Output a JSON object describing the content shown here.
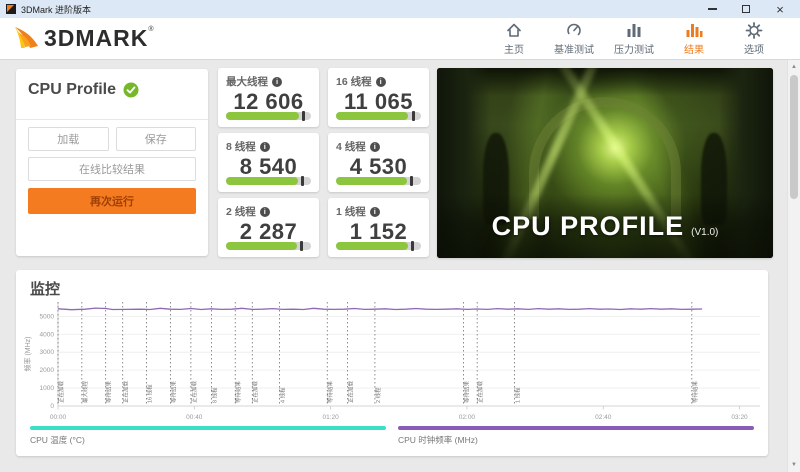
{
  "window": {
    "title": "3DMark 进阶版本",
    "controls": [
      {
        "id": "minimize",
        "icon": "minimize-icon"
      },
      {
        "id": "maximize",
        "icon": "maximize-icon"
      },
      {
        "id": "close",
        "icon": "close-icon"
      }
    ]
  },
  "nav": {
    "logo_text": "3DMARK",
    "registered_mark": "®",
    "accent_color": "#ee7c1e",
    "items": [
      {
        "id": "home",
        "label": "主页",
        "icon": "home-icon",
        "active": false
      },
      {
        "id": "benchmarks",
        "label": "基准测试",
        "icon": "gauge-icon",
        "active": false
      },
      {
        "id": "stress-tests",
        "label": "压力测试",
        "icon": "stress-bars-icon",
        "active": false
      },
      {
        "id": "results",
        "label": "结果",
        "icon": "results-bars-icon",
        "active": true
      },
      {
        "id": "options",
        "label": "选项",
        "icon": "gear-icon",
        "active": false
      }
    ]
  },
  "result_panel": {
    "title": "CPU Profile",
    "status_icon": "check-circle-icon",
    "status_color": "#76b82a",
    "load_label": "加载",
    "save_label": "保存",
    "compare_label": "在线比较结果",
    "run_again_label": "再次运行",
    "run_again_color": "#f47b20"
  },
  "scores": [
    {
      "label": "最大线程",
      "value": "12 606",
      "bar_fill_pct": 86,
      "marker_pct": 89
    },
    {
      "label": "16 线程",
      "value": "11 065",
      "bar_fill_pct": 85,
      "marker_pct": 89
    },
    {
      "label": "8 线程",
      "value": "8 540",
      "bar_fill_pct": 85,
      "marker_pct": 88
    },
    {
      "label": "4 线程",
      "value": "4 530",
      "bar_fill_pct": 84,
      "marker_pct": 87
    },
    {
      "label": "2 线程",
      "value": "2 287",
      "bar_fill_pct": 84,
      "marker_pct": 87
    },
    {
      "label": "1 线程",
      "value": "1 152",
      "bar_fill_pct": 85,
      "marker_pct": 88
    }
  ],
  "score_bar_colors": {
    "track": "#d4d4d4",
    "fill": "#8cc63e",
    "marker": "#3a3a3a"
  },
  "hero": {
    "title": "CPU PROFILE",
    "version": "(V1.0)"
  },
  "monitor": {
    "title": "监控",
    "legend": [
      {
        "label": "CPU 温度 (°C)",
        "color": "#3adfc5"
      },
      {
        "label": "CPU 时钟频率 (MHz)",
        "color": "#8a5cb8"
      }
    ]
  },
  "chart_data": {
    "type": "line",
    "title": "监控",
    "xlabel": "",
    "ylabel": "频率 (MHz)",
    "ylim": [
      0,
      5800
    ],
    "yticks": [
      0,
      1000,
      2000,
      3000,
      4000,
      5000
    ],
    "xlim_seconds": [
      0,
      206
    ],
    "xticks": [
      {
        "t": 0,
        "label": "00:00"
      },
      {
        "t": 40,
        "label": "00:40"
      },
      {
        "t": 80,
        "label": "01:20"
      },
      {
        "t": 120,
        "label": "02:00"
      },
      {
        "t": 160,
        "label": "02:40"
      },
      {
        "t": 200,
        "label": "03:20"
      }
    ],
    "grid": "horizontal",
    "legend_position": "bottom",
    "phases": [
      {
        "t": 0,
        "label": "正在加载"
      },
      {
        "t": 7,
        "label": "最大线程"
      },
      {
        "t": 14,
        "label": "等待结果"
      },
      {
        "t": 19,
        "label": "正在加载"
      },
      {
        "t": 26,
        "label": "16 线程"
      },
      {
        "t": 33,
        "label": "等待结果"
      },
      {
        "t": 39,
        "label": "正在加载"
      },
      {
        "t": 45,
        "label": "8 线程"
      },
      {
        "t": 52,
        "label": "等待结果"
      },
      {
        "t": 57,
        "label": "正在加载"
      },
      {
        "t": 65,
        "label": "4 线程"
      },
      {
        "t": 79,
        "label": "等待结果"
      },
      {
        "t": 85,
        "label": "正在加载"
      },
      {
        "t": 93,
        "label": "2 线程"
      },
      {
        "t": 119,
        "label": "等待结果"
      },
      {
        "t": 123,
        "label": "正在加载"
      },
      {
        "t": 134,
        "label": "1 线程"
      },
      {
        "t": 186,
        "label": "等待结果"
      }
    ],
    "series": [
      {
        "name": "CPU 时钟频率 (MHz)",
        "color": "#8f6ab3",
        "points": [
          [
            0,
            5420
          ],
          [
            4,
            5370
          ],
          [
            8,
            5400
          ],
          [
            11,
            5460
          ],
          [
            14,
            5440
          ],
          [
            16,
            5380
          ],
          [
            20,
            5390
          ],
          [
            24,
            5400
          ],
          [
            27,
            5380
          ],
          [
            30,
            5450
          ],
          [
            33,
            5400
          ],
          [
            36,
            5390
          ],
          [
            39,
            5440
          ],
          [
            42,
            5380
          ],
          [
            45,
            5420
          ],
          [
            48,
            5390
          ],
          [
            51,
            5400
          ],
          [
            54,
            5450
          ],
          [
            57,
            5390
          ],
          [
            60,
            5400
          ],
          [
            63,
            5430
          ],
          [
            66,
            5390
          ],
          [
            69,
            5400
          ],
          [
            72,
            5380
          ],
          [
            75,
            5450
          ],
          [
            78,
            5400
          ],
          [
            81,
            5390
          ],
          [
            84,
            5400
          ],
          [
            87,
            5440
          ],
          [
            90,
            5390
          ],
          [
            93,
            5400
          ],
          [
            96,
            5420
          ],
          [
            99,
            5380
          ],
          [
            102,
            5400
          ],
          [
            105,
            5440
          ],
          [
            108,
            5400
          ],
          [
            111,
            5390
          ],
          [
            114,
            5400
          ],
          [
            117,
            5420
          ],
          [
            120,
            5390
          ],
          [
            123,
            5410
          ],
          [
            126,
            5390
          ],
          [
            129,
            5430
          ],
          [
            132,
            5400
          ],
          [
            135,
            5420
          ],
          [
            138,
            5390
          ],
          [
            141,
            5430
          ],
          [
            144,
            5400
          ],
          [
            147,
            5420
          ],
          [
            150,
            5390
          ],
          [
            153,
            5400
          ],
          [
            156,
            5430
          ],
          [
            159,
            5400
          ],
          [
            162,
            5410
          ],
          [
            165,
            5380
          ],
          [
            168,
            5420
          ],
          [
            171,
            5400
          ],
          [
            174,
            5430
          ],
          [
            177,
            5400
          ],
          [
            180,
            5420
          ],
          [
            183,
            5390
          ],
          [
            186,
            5400
          ],
          [
            189,
            5410
          ]
        ]
      }
    ]
  }
}
